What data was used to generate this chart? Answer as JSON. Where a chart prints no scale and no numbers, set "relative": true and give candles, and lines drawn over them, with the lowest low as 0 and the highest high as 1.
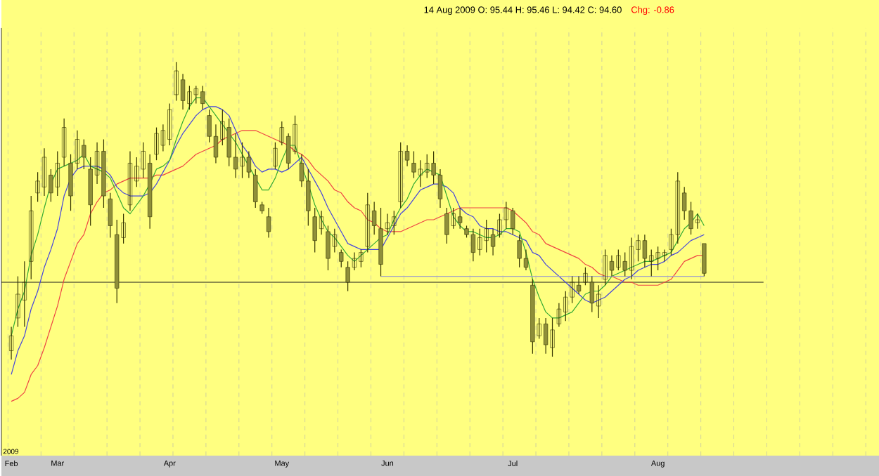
{
  "chart_data": {
    "type": "candlestick",
    "title": "14 Aug 2009   O: 95.44   H: 95.46   L: 94.42   C: 94.60",
    "subtitle": "Chg: -0.86",
    "annotations": [
      "2009"
    ],
    "relative": true,
    "grid": "x",
    "color": "#333300",
    "categories": [
      "Feb",
      null,
      null,
      null,
      null,
      null,
      null,
      "Mar",
      null,
      null,
      null,
      null,
      null,
      null,
      null,
      null,
      null,
      null,
      null,
      null,
      null,
      null,
      null,
      null,
      "Apr",
      null,
      null,
      null,
      null,
      null,
      null,
      null,
      null,
      null,
      null,
      null,
      null,
      null,
      null,
      null,
      null,
      "May",
      null,
      null,
      null,
      null,
      null,
      null,
      null,
      null,
      null,
      null,
      null,
      null,
      null,
      null,
      null,
      "Jun",
      null,
      null,
      null,
      null,
      null,
      null,
      null,
      null,
      null,
      null,
      null,
      null,
      null,
      null,
      null,
      null,
      null,
      null,
      "Jul",
      null,
      null,
      null,
      null,
      null,
      null,
      null,
      null,
      null,
      null,
      null,
      null,
      null,
      null,
      null,
      null,
      null,
      null,
      null,
      null,
      null,
      "Aug",
      null,
      null,
      null,
      null,
      null,
      null,
      null
    ],
    "ohlc": [
      [
        0.03,
        0.11,
        0,
        0.08
      ],
      [
        0.14,
        0.28,
        0.11,
        0.22
      ],
      [
        0.2,
        0.33,
        0.11,
        0.26
      ],
      [
        0.33,
        0.55,
        0.27,
        0.5
      ],
      [
        0.56,
        0.63,
        0.53,
        0.6
      ],
      [
        0.58,
        0.71,
        0.55,
        0.68
      ],
      [
        0.62,
        0.64,
        0.53,
        0.56
      ],
      [
        0.58,
        0.7,
        0.55,
        0.66
      ],
      [
        0.68,
        0.81,
        0.65,
        0.78
      ],
      [
        0.66,
        0.69,
        0.5,
        0.55
      ],
      [
        0.66,
        0.77,
        0.64,
        0.74
      ],
      [
        0.72,
        0.74,
        0.64,
        0.68
      ],
      [
        0.64,
        0.68,
        0.45,
        0.52
      ],
      [
        0.62,
        0.73,
        0.59,
        0.7
      ],
      [
        0.7,
        0.74,
        0.51,
        0.55
      ],
      [
        0.54,
        0.56,
        0.41,
        0.45
      ],
      [
        0.42,
        0.47,
        0.19,
        0.24
      ],
      [
        0.41,
        0.49,
        0.39,
        0.46
      ],
      [
        0.52,
        0.7,
        0.5,
        0.66
      ],
      [
        0.6,
        0.68,
        0.58,
        0.65
      ],
      [
        0.64,
        0.73,
        0.61,
        0.7
      ],
      [
        0.66,
        0.69,
        0.44,
        0.48
      ],
      [
        0.69,
        0.78,
        0.67,
        0.76
      ],
      [
        0.72,
        0.79,
        0.7,
        0.77
      ],
      [
        0.74,
        0.86,
        0.72,
        0.84
      ],
      [
        0.89,
        1,
        0.87,
        0.97
      ],
      [
        0.94,
        0.96,
        0.84,
        0.87
      ],
      [
        0.86,
        0.92,
        0.84,
        0.9
      ],
      [
        0.89,
        0.92,
        0.86,
        0.91
      ],
      [
        0.9,
        0.92,
        0.84,
        0.86
      ],
      [
        0.82,
        0.84,
        0.73,
        0.75
      ],
      [
        0.75,
        0.79,
        0.66,
        0.68
      ],
      [
        0.74,
        0.84,
        0.72,
        0.8
      ],
      [
        0.78,
        0.81,
        0.65,
        0.68
      ],
      [
        0.68,
        0.76,
        0.61,
        0.64
      ],
      [
        0.65,
        0.73,
        0.61,
        0.68
      ],
      [
        0.68,
        0.7,
        0.61,
        0.63
      ],
      [
        0.62,
        0.64,
        0.51,
        0.53
      ],
      [
        0.52,
        0.53,
        0.49,
        0.5
      ],
      [
        0.48,
        0.51,
        0.41,
        0.43
      ],
      [
        0.65,
        0.73,
        0.64,
        0.71
      ],
      [
        0.73,
        0.8,
        0.72,
        0.78
      ],
      [
        0.75,
        0.76,
        0.64,
        0.66
      ],
      [
        0.7,
        0.82,
        0.69,
        0.79
      ],
      [
        0.66,
        0.69,
        0.58,
        0.6
      ],
      [
        0.6,
        0.64,
        0.45,
        0.5
      ],
      [
        0.48,
        0.51,
        0.36,
        0.4
      ],
      [
        0.44,
        0.5,
        0.42,
        0.48
      ],
      [
        0.43,
        0.45,
        0.3,
        0.34
      ],
      [
        0.38,
        0.44,
        0.36,
        0.42
      ],
      [
        0.36,
        0.37,
        0.31,
        0.33
      ],
      [
        0.31,
        0.33,
        0.23,
        0.26
      ],
      [
        0.31,
        0.36,
        0.3,
        0.34
      ],
      [
        0.33,
        0.37,
        0.31,
        0.36
      ],
      [
        0.38,
        0.56,
        0.36,
        0.52
      ],
      [
        0.5,
        0.53,
        0.42,
        0.45
      ],
      [
        0.44,
        0.51,
        0.28,
        0.32
      ],
      [
        0.44,
        0.49,
        0.42,
        0.46
      ],
      [
        0.45,
        0.5,
        0.42,
        0.48
      ],
      [
        0.53,
        0.73,
        0.51,
        0.7
      ],
      [
        0.7,
        0.72,
        0.65,
        0.67
      ],
      [
        0.66,
        0.7,
        0.61,
        0.63
      ],
      [
        0.62,
        0.67,
        0.58,
        0.64
      ],
      [
        0.63,
        0.69,
        0.61,
        0.66
      ],
      [
        0.66,
        0.7,
        0.59,
        0.62
      ],
      [
        0.62,
        0.64,
        0.51,
        0.54
      ],
      [
        0.49,
        0.51,
        0.39,
        0.42
      ],
      [
        0.45,
        0.51,
        0.44,
        0.49
      ],
      [
        0.48,
        0.51,
        0.44,
        0.46
      ],
      [
        0.44,
        0.45,
        0.41,
        0.42
      ],
      [
        0.42,
        0.44,
        0.33,
        0.36
      ],
      [
        0.37,
        0.44,
        0.35,
        0.41
      ],
      [
        0.4,
        0.47,
        0.36,
        0.44
      ],
      [
        0.42,
        0.44,
        0.35,
        0.38
      ],
      [
        0.42,
        0.49,
        0.41,
        0.47
      ],
      [
        0.47,
        0.53,
        0.44,
        0.51
      ],
      [
        0.5,
        0.51,
        0.42,
        0.44
      ],
      [
        0.4,
        0.42,
        0.31,
        0.34
      ],
      [
        0.34,
        0.37,
        0.3,
        0.31
      ],
      [
        0.25,
        0.27,
        0.02,
        0.06
      ],
      [
        0.08,
        0.14,
        0.07,
        0.12
      ],
      [
        0.12,
        0.14,
        0.02,
        0.05
      ],
      [
        0.04,
        0.14,
        0.01,
        0.1
      ],
      [
        0.12,
        0.19,
        0.11,
        0.17
      ],
      [
        0.16,
        0.23,
        0.13,
        0.21
      ],
      [
        0.21,
        0.28,
        0.19,
        0.26
      ],
      [
        0.25,
        0.28,
        0.22,
        0.23
      ],
      [
        0.26,
        0.31,
        0.25,
        0.29
      ],
      [
        0.26,
        0.28,
        0.16,
        0.19
      ],
      [
        0.18,
        0.25,
        0.14,
        0.22
      ],
      [
        0.27,
        0.37,
        0.25,
        0.35
      ],
      [
        0.33,
        0.35,
        0.28,
        0.3
      ],
      [
        0.31,
        0.37,
        0.3,
        0.35
      ],
      [
        0.33,
        0.36,
        0.28,
        0.3
      ],
      [
        0.3,
        0.41,
        0.27,
        0.38
      ],
      [
        0.37,
        0.42,
        0.33,
        0.4
      ],
      [
        0.4,
        0.42,
        0.31,
        0.34
      ],
      [
        0.33,
        0.37,
        0.28,
        0.35
      ],
      [
        0.34,
        0.38,
        0.3,
        0.36
      ],
      [
        0.35,
        0.37,
        0.33,
        0.36
      ],
      [
        0.37,
        0.44,
        0.35,
        0.42
      ],
      [
        0.42,
        0.63,
        0.39,
        0.6
      ],
      [
        0.56,
        0.58,
        0.47,
        0.5
      ],
      [
        0.5,
        0.53,
        0.42,
        0.44
      ],
      [
        0.46,
        0.49,
        0.44,
        0.47
      ],
      [
        0.39,
        0.39,
        0.28,
        0.29
      ]
    ],
    "series": [
      {
        "type": "line",
        "color": "#ee4444",
        "values": [
          -0.14,
          -0.13,
          -0.11,
          -0.05,
          -0.02,
          0.04,
          0.11,
          0.18,
          0.27,
          0.33,
          0.39,
          0.42,
          0.49,
          0.53,
          0.56,
          0.57,
          0.59,
          0.6,
          0.61,
          0.61,
          0.61,
          0.61,
          0.62,
          0.62,
          0.63,
          0.64,
          0.65,
          0.67,
          0.69,
          0.7,
          0.71,
          0.72,
          0.74,
          0.75,
          0.76,
          0.77,
          0.77,
          0.77,
          0.76,
          0.75,
          0.74,
          0.73,
          0.72,
          0.7,
          0.69,
          0.67,
          0.64,
          0.62,
          0.6,
          0.57,
          0.56,
          0.53,
          0.51,
          0.5,
          0.47,
          0.46,
          0.44,
          0.43,
          0.43,
          0.43,
          0.44,
          0.45,
          0.46,
          0.47,
          0.47,
          0.48,
          0.49,
          0.5,
          0.51,
          0.51,
          0.51,
          0.51,
          0.51,
          0.51,
          0.51,
          0.51,
          0.5,
          0.48,
          0.46,
          0.43,
          0.42,
          0.39,
          0.38,
          0.37,
          0.36,
          0.35,
          0.34,
          0.32,
          0.31,
          0.29,
          0.28,
          0.28,
          0.27,
          0.26,
          0.26,
          0.25,
          0.25,
          0.25,
          0.25,
          0.26,
          0.27,
          0.3,
          0.33,
          0.34,
          0.35,
          0.35
        ]
      },
      {
        "type": "line",
        "color": "#4444dd",
        "values": [
          -0.05,
          0.03,
          0.08,
          0.17,
          0.23,
          0.31,
          0.37,
          0.44,
          0.55,
          0.61,
          0.64,
          0.65,
          0.65,
          0.65,
          0.64,
          0.62,
          0.58,
          0.56,
          0.55,
          0.55,
          0.55,
          0.56,
          0.59,
          0.63,
          0.67,
          0.72,
          0.76,
          0.79,
          0.82,
          0.84,
          0.85,
          0.85,
          0.84,
          0.82,
          0.77,
          0.72,
          0.69,
          0.65,
          0.63,
          0.64,
          0.64,
          0.63,
          0.64,
          0.66,
          0.68,
          0.64,
          0.6,
          0.56,
          0.51,
          0.47,
          0.43,
          0.39,
          0.38,
          0.37,
          0.37,
          0.37,
          0.37,
          0.41,
          0.45,
          0.49,
          0.51,
          0.54,
          0.57,
          0.58,
          0.59,
          0.59,
          0.58,
          0.56,
          0.51,
          0.49,
          0.48,
          0.45,
          0.44,
          0.44,
          0.43,
          0.43,
          0.42,
          0.41,
          0.4,
          0.36,
          0.35,
          0.32,
          0.3,
          0.28,
          0.26,
          0.24,
          0.22,
          0.2,
          0.19,
          0.2,
          0.21,
          0.23,
          0.25,
          0.27,
          0.28,
          0.3,
          0.31,
          0.32,
          0.32,
          0.33,
          0.35,
          0.36,
          0.38,
          0.4,
          0.41,
          0.42
        ]
      },
      {
        "type": "line",
        "color": "#33aa33",
        "values": [
          0.08,
          0.17,
          0.23,
          0.35,
          0.42,
          0.51,
          0.59,
          0.64,
          0.65,
          0.66,
          0.67,
          0.69,
          0.65,
          0.64,
          0.63,
          0.61,
          0.56,
          0.51,
          0.49,
          0.52,
          0.55,
          0.59,
          0.64,
          0.65,
          0.67,
          0.74,
          0.8,
          0.85,
          0.88,
          0.88,
          0.85,
          0.82,
          0.79,
          0.76,
          0.73,
          0.69,
          0.65,
          0.61,
          0.57,
          0.57,
          0.61,
          0.67,
          0.72,
          0.72,
          0.65,
          0.59,
          0.52,
          0.47,
          0.43,
          0.41,
          0.38,
          0.35,
          0.33,
          0.35,
          0.37,
          0.39,
          0.41,
          0.42,
          0.47,
          0.51,
          0.54,
          0.59,
          0.62,
          0.64,
          0.63,
          0.62,
          0.55,
          0.48,
          0.45,
          0.43,
          0.43,
          0.42,
          0.41,
          0.41,
          0.42,
          0.44,
          0.44,
          0.43,
          0.36,
          0.27,
          0.21,
          0.16,
          0.14,
          0.14,
          0.15,
          0.16,
          0.19,
          0.22,
          0.23,
          0.23,
          0.25,
          0.28,
          0.29,
          0.3,
          0.31,
          0.32,
          0.33,
          0.33,
          0.34,
          0.35,
          0.36,
          0.4,
          0.44,
          0.46,
          0.49,
          0.45
        ]
      },
      {
        "type": "line",
        "color": "#a0a0c8",
        "values": [
          null,
          null,
          null,
          null,
          null,
          null,
          null,
          null,
          null,
          null,
          null,
          null,
          null,
          null,
          null,
          null,
          null,
          null,
          null,
          null,
          null,
          null,
          null,
          null,
          null,
          null,
          null,
          null,
          null,
          null,
          null,
          null,
          null,
          null,
          null,
          null,
          null,
          null,
          null,
          null,
          null,
          null,
          null,
          null,
          null,
          null,
          null,
          null,
          null,
          null,
          null,
          null,
          null,
          null,
          null,
          null,
          0.28,
          0.28,
          0.28,
          0.28,
          0.28,
          0.28,
          0.28,
          0.28,
          0.28,
          0.28,
          0.28,
          0.28,
          0.28,
          0.28,
          0.28,
          0.28,
          0.28,
          0.28,
          0.28,
          0.28,
          0.28,
          0.28,
          0.28,
          0.28,
          0.28,
          0.28,
          0.28,
          0.28,
          0.28,
          0.28,
          0.28,
          0.28,
          0.28,
          0.28,
          0.28,
          0.28,
          0.28,
          0.28,
          0.28,
          0.28,
          0.28,
          0.28,
          0.28,
          0.28,
          0.28,
          0.28,
          0.28,
          0.28,
          0.28,
          0.28
        ]
      }
    ],
    "ref_lines": [
      {
        "axis": "y",
        "value": 0.26,
        "color": "#202020"
      }
    ]
  }
}
